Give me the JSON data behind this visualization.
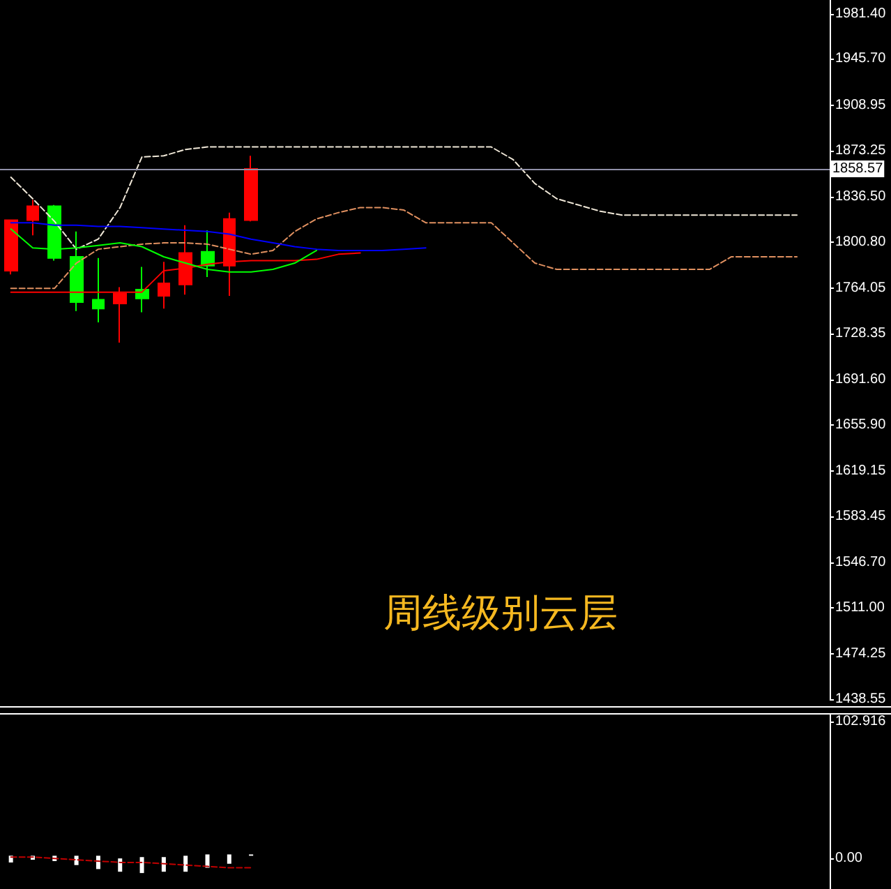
{
  "chart_data": [
    {
      "type": "candlestick",
      "categories": [
        null,
        null,
        null,
        null,
        null,
        null,
        null,
        null,
        null,
        null,
        null,
        null,
        null,
        null,
        null,
        null,
        null,
        null,
        null,
        null,
        null,
        null,
        null,
        null,
        null,
        null,
        null,
        null,
        null,
        null,
        null,
        null,
        null,
        null,
        null,
        null,
        null,
        null
      ],
      "ohlc": [
        [
          1778,
          1818,
          1775,
          1818
        ],
        [
          1818,
          1834,
          1806,
          1829
        ],
        [
          1829,
          1830,
          1786,
          1788
        ],
        [
          1789,
          1809,
          1746,
          1753
        ],
        [
          1755,
          1788,
          1737,
          1748
        ],
        [
          1752,
          1765,
          1721,
          1760
        ],
        [
          1763,
          1781,
          1745,
          1756
        ],
        [
          1758,
          1785,
          1748,
          1768
        ],
        [
          1767,
          1814,
          1759,
          1792
        ],
        [
          1793,
          1810,
          1773,
          1782
        ],
        [
          1782,
          1824,
          1758,
          1819
        ],
        [
          1818,
          1869,
          1817,
          1858.57
        ],
        null,
        null,
        null,
        null,
        null,
        null,
        null,
        null,
        null,
        null,
        null,
        null,
        null,
        null,
        null,
        null,
        null,
        null,
        null,
        null,
        null,
        null,
        null,
        null,
        null,
        null
      ],
      "colors": [
        "#ff0000",
        "#ff0000",
        "#00ff00",
        "#00ff00",
        "#00ff00",
        "#ff0000",
        "#00ff00",
        "#ff0000",
        "#ff0000",
        "#00ff00",
        "#ff0000",
        "#ff0000",
        null,
        null,
        null,
        null,
        null,
        null,
        null,
        null,
        null,
        null,
        null,
        null,
        null,
        null,
        null,
        null,
        null,
        null,
        null,
        null,
        null,
        null,
        null,
        null,
        null,
        null
      ],
      "series": [
        {
          "type": "line",
          "color": "#f0e8d8",
          "line_style": "dashed",
          "values": [
            1852,
            1835,
            1817,
            1795,
            1803,
            1828,
            1868,
            1869,
            1874,
            1876,
            1876,
            1876,
            1876,
            1876,
            1876,
            1876,
            1876,
            1876,
            1876,
            1876,
            1876,
            1876,
            1876,
            1866,
            1847,
            1835,
            1830,
            1825,
            1822,
            1822,
            1822,
            1822,
            1822,
            1822,
            1822,
            1822,
            1822,
            null
          ]
        },
        {
          "type": "line",
          "color": "#e09060",
          "line_style": "dashed",
          "values": [
            1764,
            1764,
            1764,
            1784,
            1795,
            1797,
            1799,
            1800,
            1800,
            1799,
            1795,
            1791,
            1794,
            1809,
            1819,
            1824,
            1828,
            1828,
            1826,
            1816,
            1816,
            1816,
            1816,
            1800,
            1784,
            1779,
            1779,
            1779,
            1779,
            1779,
            1779,
            1779,
            1779,
            1789,
            1789,
            1789,
            1789,
            null
          ]
        },
        {
          "type": "line",
          "color": "#0000ff",
          "line_style": "solid",
          "values": [
            1816,
            1816,
            1814,
            1814,
            1813,
            1813,
            1812,
            1811,
            1810,
            1809,
            1807,
            1803,
            1800,
            1797,
            1795,
            1794,
            1794,
            1794,
            1795,
            1796,
            null,
            null,
            null,
            null,
            null,
            null,
            null,
            null,
            null,
            null,
            null,
            null,
            null,
            null,
            null,
            null,
            null,
            null
          ]
        },
        {
          "type": "line",
          "color": "#ff0000",
          "line_style": "solid",
          "values": [
            1761,
            1761,
            1761,
            1761,
            1761,
            1761,
            1761,
            1778,
            1780,
            1783,
            1785,
            1786,
            1786,
            1786,
            1787,
            1791,
            1792,
            null,
            null,
            null,
            null,
            null,
            null,
            null,
            null,
            null,
            null,
            null,
            null,
            null,
            null,
            null,
            null,
            null,
            null,
            null,
            null,
            null
          ]
        },
        {
          "type": "line",
          "color": "#00ff00",
          "line_style": "solid",
          "values": [
            1811,
            1796,
            1795,
            1796,
            1798,
            1800,
            1797,
            1789,
            1784,
            1779,
            1777,
            1777,
            1779,
            1784,
            1794,
            null,
            null,
            null,
            null,
            null,
            null,
            null,
            null,
            null,
            null,
            null,
            null,
            null,
            null,
            null,
            null,
            null,
            null,
            null,
            null,
            null,
            null,
            null
          ]
        }
      ],
      "marker": "none",
      "ylim": [
        1438.55,
        1992.4
      ],
      "yticks": [
        {
          "value": 1981.4,
          "label": "1981.40"
        },
        {
          "value": 1945.7,
          "label": "1945.70"
        },
        {
          "value": 1908.95,
          "label": "1908.95"
        },
        {
          "value": 1873.25,
          "label": "1873.25"
        },
        {
          "value": 1836.5,
          "label": "1836.50"
        },
        {
          "value": 1800.8,
          "label": "1800.80"
        },
        {
          "value": 1764.05,
          "label": "1764.05"
        },
        {
          "value": 1728.35,
          "label": "1728.35"
        },
        {
          "value": 1691.6,
          "label": "1691.60"
        },
        {
          "value": 1655.9,
          "label": "1655.90"
        },
        {
          "value": 1619.15,
          "label": "1619.15"
        },
        {
          "value": 1583.45,
          "label": "1583.45"
        },
        {
          "value": 1546.7,
          "label": "1546.70"
        },
        {
          "value": 1511,
          "label": "1511.00"
        },
        {
          "value": 1474.25,
          "label": "1474.25"
        },
        {
          "value": 1438.55,
          "label": "1438.55"
        }
      ],
      "ref_lines": [
        {
          "axis": "y",
          "value": 1858.57,
          "label": "1858.57",
          "color": "#9090a8"
        }
      ],
      "annotations": [
        "周线级别云层"
      ],
      "tick_labels": "y"
    },
    {
      "type": "bar",
      "categories": [
        null,
        null,
        null,
        null,
        null,
        null,
        null,
        null,
        null,
        null,
        null,
        null,
        null,
        null,
        null,
        null,
        null,
        null,
        null,
        null,
        null,
        null,
        null,
        null,
        null,
        null,
        null,
        null,
        null,
        null,
        null,
        null,
        null,
        null,
        null,
        null,
        null,
        null
      ],
      "series": [
        {
          "type": "bar",
          "color": "#ffffff",
          "base": [
            -3,
            -1,
            -2,
            -5,
            -8,
            -10,
            -11,
            -10,
            -10,
            -7,
            -4,
            2,
            null,
            null,
            null,
            null,
            null,
            null,
            null,
            null,
            null,
            null,
            null,
            null,
            null,
            null,
            null,
            null,
            null,
            null,
            null,
            null,
            null,
            null,
            null,
            null,
            null,
            null
          ],
          "values": [
            5,
            3,
            4,
            7,
            10,
            10,
            12,
            11,
            12,
            10,
            7,
            1,
            null,
            null,
            null,
            null,
            null,
            null,
            null,
            null,
            null,
            null,
            null,
            null,
            null,
            null,
            null,
            null,
            null,
            null,
            null,
            null,
            null,
            null,
            null,
            null,
            null,
            null
          ]
        },
        {
          "type": "line",
          "color": "#c00000",
          "line_style": "dashed",
          "values": [
            1,
            1,
            0,
            -1,
            -2,
            -3,
            -3,
            -4,
            -5,
            -6,
            -7,
            -7,
            null,
            null,
            null,
            null,
            null,
            null,
            null,
            null,
            null,
            null,
            null,
            null,
            null,
            null,
            null,
            null,
            null,
            null,
            null,
            null,
            null,
            null,
            null,
            null,
            null,
            null
          ]
        }
      ],
      "marker": "none",
      "ylim": [
        -23,
        108.2
      ],
      "yticks": [
        102.916,
        {
          "value": 0,
          "label": "0.00"
        }
      ],
      "tick_labels": "y"
    }
  ]
}
